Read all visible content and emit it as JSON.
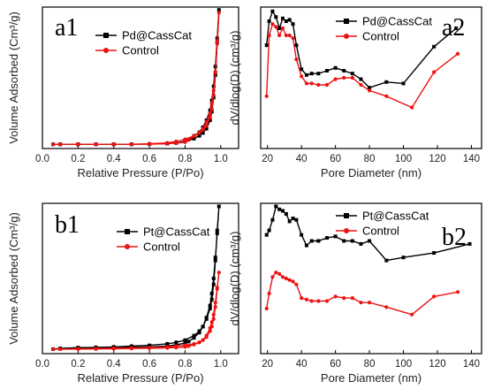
{
  "chart_data": [
    {
      "type": "line",
      "panel_label": "a1",
      "xlabel": "Relative Pressure (P/Po)",
      "ylabel": "Volume Adsorbed (Cm³/g)",
      "xlim": [
        0.0,
        1.1
      ],
      "xticks": [
        0.0,
        0.2,
        0.4,
        0.6,
        0.8,
        1.0
      ],
      "xtick_labels": [
        "0.0",
        "0.2",
        "0.4",
        "0.6",
        "0.8",
        "1.0"
      ],
      "ylim": [
        0,
        100
      ],
      "yticks_shown": false,
      "legend_placement": "top-center",
      "series": [
        {
          "name": "Pd@CassCat",
          "color": "#000000",
          "marker": "square",
          "x": [
            0.06,
            0.1,
            0.2,
            0.3,
            0.4,
            0.5,
            0.6,
            0.7,
            0.75,
            0.8,
            0.85,
            0.88,
            0.9,
            0.92,
            0.94,
            0.95,
            0.96,
            0.97,
            0.98,
            0.99,
            0.98,
            0.97,
            0.96,
            0.95,
            0.94,
            0.92,
            0.9,
            0.88,
            0.85,
            0.82,
            0.8,
            0.75,
            0.7,
            0.6,
            0.5,
            0.4,
            0.3,
            0.2,
            0.1
          ],
          "y": [
            3,
            3,
            3,
            3,
            3,
            3,
            3.2,
            3.5,
            4,
            5,
            7,
            9,
            11,
            14,
            20,
            26,
            36,
            52,
            75,
            98,
            78,
            58,
            44,
            34,
            27,
            20,
            15,
            11.5,
            9,
            6.5,
            5,
            4,
            3.5,
            3.2,
            3,
            3,
            3,
            3,
            3
          ]
        },
        {
          "name": "Control",
          "color": "#ee1111",
          "marker": "circle",
          "x": [
            0.06,
            0.1,
            0.2,
            0.3,
            0.4,
            0.5,
            0.6,
            0.7,
            0.75,
            0.8,
            0.85,
            0.88,
            0.9,
            0.92,
            0.94,
            0.95,
            0.96,
            0.97,
            0.98,
            0.99,
            0.98,
            0.97,
            0.96,
            0.95,
            0.94,
            0.92,
            0.9,
            0.88,
            0.85,
            0.82,
            0.8,
            0.75,
            0.7,
            0.6,
            0.5,
            0.4,
            0.3,
            0.2,
            0.1
          ],
          "y": [
            3,
            3,
            3,
            3,
            3,
            3,
            3.4,
            4,
            5,
            6.5,
            9,
            11,
            13,
            16,
            22,
            28,
            38,
            54,
            76,
            96,
            74,
            54,
            41,
            32,
            25,
            19,
            14,
            11,
            8.5,
            6,
            4.5,
            3.8,
            3.4,
            3.1,
            3,
            3,
            3,
            3,
            3
          ]
        }
      ]
    },
    {
      "type": "line",
      "panel_label": "a2",
      "xlabel": "Pore Diameter (nm)",
      "ylabel": "dV/dlog(D) (cm³/g)",
      "xlim": [
        16,
        146
      ],
      "xticks": [
        20,
        40,
        60,
        80,
        100,
        120,
        140
      ],
      "xtick_labels": [
        "20",
        "40",
        "60",
        "80",
        "100",
        "120",
        "140"
      ],
      "ylim": [
        0,
        100
      ],
      "yticks_shown": false,
      "legend_placement": "top-center",
      "series": [
        {
          "name": "Pd@CassCat",
          "color": "#000000",
          "marker": "square",
          "x": [
            19.5,
            21,
            23,
            25,
            27,
            29,
            31,
            33,
            35,
            37,
            40,
            43,
            46,
            50,
            55,
            60,
            65,
            70,
            75,
            80,
            90,
            100,
            118,
            131
          ],
          "y": [
            73,
            90,
            97,
            93,
            85,
            92,
            90,
            91,
            88,
            73,
            56,
            52,
            53,
            53,
            55,
            57,
            55,
            53,
            49,
            43,
            47,
            46,
            72,
            85
          ],
          "tail_note": ""
        },
        {
          "name": "Control",
          "color": "#ee1111",
          "marker": "circle",
          "x": [
            19.5,
            21,
            23,
            25,
            27,
            29,
            31,
            33,
            35,
            37,
            40,
            43,
            46,
            50,
            55,
            60,
            65,
            70,
            75,
            80,
            90,
            105,
            118,
            132
          ],
          "y": [
            37,
            80,
            88,
            86,
            80,
            85,
            80,
            80,
            78,
            63,
            51,
            46,
            46,
            45,
            45,
            49,
            50,
            50,
            45,
            41,
            37,
            29,
            54,
            67
          ]
        }
      ]
    },
    {
      "type": "line",
      "panel_label": "b1",
      "xlabel": "Relative Pressure (P/Po)",
      "ylabel": "Volume Adsorbed (Cm³/g)",
      "xlim": [
        0.0,
        1.1
      ],
      "xticks": [
        0.0,
        0.2,
        0.4,
        0.6,
        0.8,
        1.0
      ],
      "xtick_labels": [
        "0.0",
        "0.2",
        "0.4",
        "0.6",
        "0.8",
        "1.0"
      ],
      "ylim": [
        0,
        100
      ],
      "yticks_shown": false,
      "legend_placement": "top-center",
      "series": [
        {
          "name": "Pt@CassCat",
          "color": "#000000",
          "marker": "square",
          "x": [
            0.06,
            0.1,
            0.2,
            0.3,
            0.4,
            0.5,
            0.6,
            0.7,
            0.75,
            0.8,
            0.85,
            0.88,
            0.9,
            0.92,
            0.94,
            0.95,
            0.96,
            0.97,
            0.98,
            0.99,
            0.98,
            0.97,
            0.96,
            0.95,
            0.94,
            0.92,
            0.9,
            0.88,
            0.85,
            0.82,
            0.8,
            0.75,
            0.7,
            0.6,
            0.5,
            0.4,
            0.3,
            0.2,
            0.1
          ],
          "y": [
            3,
            3.5,
            4,
            4.2,
            4.5,
            5,
            5.5,
            6.5,
            7.5,
            9,
            12,
            15,
            18,
            23,
            30,
            36,
            46,
            62,
            82,
            98,
            80,
            64,
            50,
            40,
            32,
            24,
            18,
            14,
            10.5,
            8,
            7,
            5.8,
            5,
            4.5,
            4.2,
            4,
            3.8,
            3.5,
            3.2
          ]
        },
        {
          "name": "Control",
          "color": "#ee1111",
          "marker": "circle",
          "x": [
            0.06,
            0.1,
            0.2,
            0.3,
            0.4,
            0.5,
            0.6,
            0.7,
            0.75,
            0.8,
            0.85,
            0.88,
            0.9,
            0.92,
            0.94,
            0.95,
            0.96,
            0.97,
            0.98,
            0.99,
            0.98,
            0.97,
            0.96,
            0.95,
            0.94,
            0.92,
            0.9,
            0.88,
            0.85,
            0.82,
            0.8,
            0.75,
            0.7,
            0.6,
            0.5,
            0.4,
            0.3,
            0.2,
            0.1
          ],
          "y": [
            3,
            3,
            3.2,
            3.4,
            3.6,
            3.8,
            4,
            4.5,
            5,
            5.5,
            6.5,
            7.5,
            9,
            11,
            15,
            18,
            23,
            31,
            43,
            54,
            44,
            34,
            26,
            21,
            17,
            12,
            9,
            7.5,
            6,
            5,
            4.5,
            4,
            3.8,
            3.6,
            3.4,
            3.2,
            3.1,
            3,
            3
          ]
        }
      ]
    },
    {
      "type": "line",
      "panel_label": "b2",
      "xlabel": "Pore Diameter (nm)",
      "ylabel": "dV/dlog(D) (cm³/g)",
      "xlim": [
        16,
        146
      ],
      "xticks": [
        20,
        40,
        60,
        80,
        100,
        120,
        140
      ],
      "xtick_labels": [
        "20",
        "40",
        "60",
        "80",
        "100",
        "120",
        "140"
      ],
      "ylim": [
        0,
        100
      ],
      "yticks_shown": false,
      "legend_placement": "top-center",
      "series": [
        {
          "name": "Pt@CassCat",
          "color": "#000000",
          "marker": "square",
          "x": [
            19.5,
            21,
            23,
            25,
            27,
            29,
            31,
            33,
            35,
            37,
            40,
            43,
            46,
            50,
            55,
            60,
            65,
            70,
            75,
            80,
            90,
            100,
            118,
            139
          ],
          "y": [
            79,
            82,
            89,
            98,
            96,
            95,
            93,
            88,
            90,
            89,
            79,
            72,
            75,
            75,
            77,
            78,
            75,
            75,
            73,
            75,
            62,
            64,
            67,
            73
          ]
        },
        {
          "name": "Control",
          "color": "#ee1111",
          "marker": "circle",
          "x": [
            19.5,
            21,
            23,
            25,
            27,
            29,
            31,
            33,
            35,
            37,
            40,
            43,
            46,
            50,
            55,
            60,
            65,
            70,
            75,
            80,
            90,
            105,
            118,
            132
          ],
          "y": [
            30,
            40,
            51,
            54,
            53,
            51,
            50,
            49,
            48,
            46,
            37,
            36,
            35,
            35,
            35,
            38,
            37,
            37,
            34,
            34,
            31,
            26,
            38,
            41
          ]
        }
      ]
    }
  ]
}
